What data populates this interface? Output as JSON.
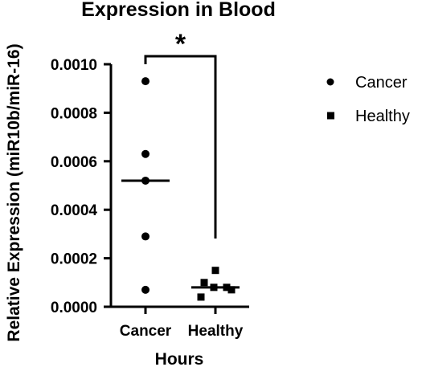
{
  "chart_data": {
    "type": "scatter",
    "title": "Expression in Blood",
    "xlabel": "Hours",
    "ylabel": "Relative Expression (miR10b/miR-16)",
    "categories": [
      "Cancer",
      "Healthy"
    ],
    "ylim": [
      0,
      0.001
    ],
    "yticks": [
      "0.0000",
      "0.0002",
      "0.0004",
      "0.0006",
      "0.0008",
      "0.0010"
    ],
    "grid": false,
    "legend_position": "right",
    "series": [
      {
        "name": "Cancer",
        "marker": "circle",
        "category": "Cancer",
        "values": [
          0.00093,
          0.00063,
          0.00052,
          0.00029,
          7e-05
        ],
        "median": 0.00052
      },
      {
        "name": "Healthy",
        "marker": "square",
        "category": "Healthy",
        "values": [
          0.00015,
          0.0001,
          8e-05,
          8e-05,
          7e-05,
          4e-05
        ],
        "median": 8e-05
      }
    ],
    "annotations": [
      {
        "text": "*",
        "between": [
          "Cancer",
          "Healthy"
        ]
      }
    ],
    "colors": {
      "marker": "#000000",
      "axis": "#000000"
    }
  }
}
